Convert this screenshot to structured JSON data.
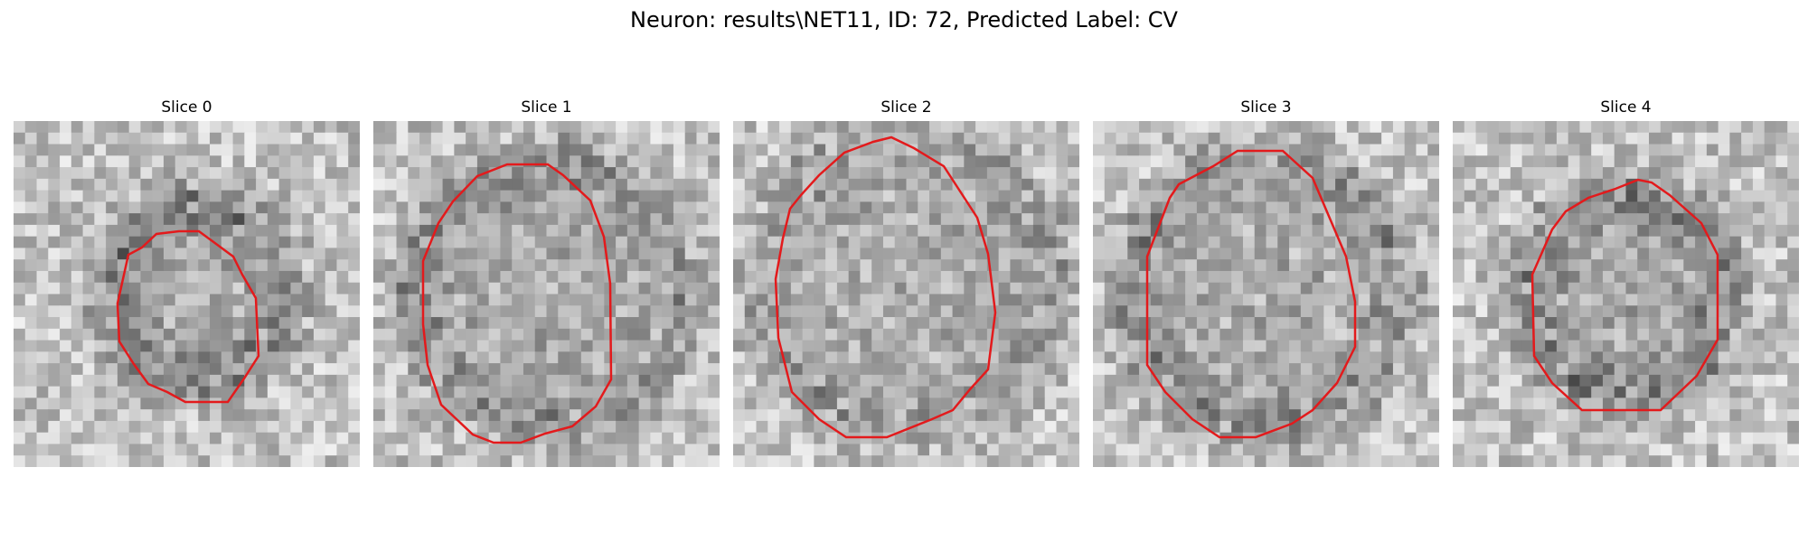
{
  "figure": {
    "title": "Neuron: results\\NET11, ID: 72, Predicted Label: CV"
  },
  "panels": [
    {
      "title": "Slice 0",
      "outline_color": "#e31a1c",
      "seed": 11,
      "dark_ring": 0.55,
      "ring_r": 7.5,
      "center": [
        16,
        15
      ]
    },
    {
      "title": "Slice 1",
      "outline_color": "#e31a1c",
      "seed": 23,
      "dark_ring": 0.45,
      "ring_r": 11.5,
      "center": [
        15,
        15
      ]
    },
    {
      "title": "Slice 2",
      "outline_color": "#e31a1c",
      "seed": 37,
      "dark_ring": 0.35,
      "ring_r": 12.5,
      "center": [
        15,
        14
      ]
    },
    {
      "title": "Slice 3",
      "outline_color": "#e31a1c",
      "seed": 41,
      "dark_ring": 0.45,
      "ring_r": 11.5,
      "center": [
        15,
        15
      ]
    },
    {
      "title": "Slice 4",
      "outline_color": "#e31a1c",
      "seed": 53,
      "dark_ring": 0.55,
      "ring_r": 8.5,
      "center": [
        15,
        15
      ]
    }
  ]
}
